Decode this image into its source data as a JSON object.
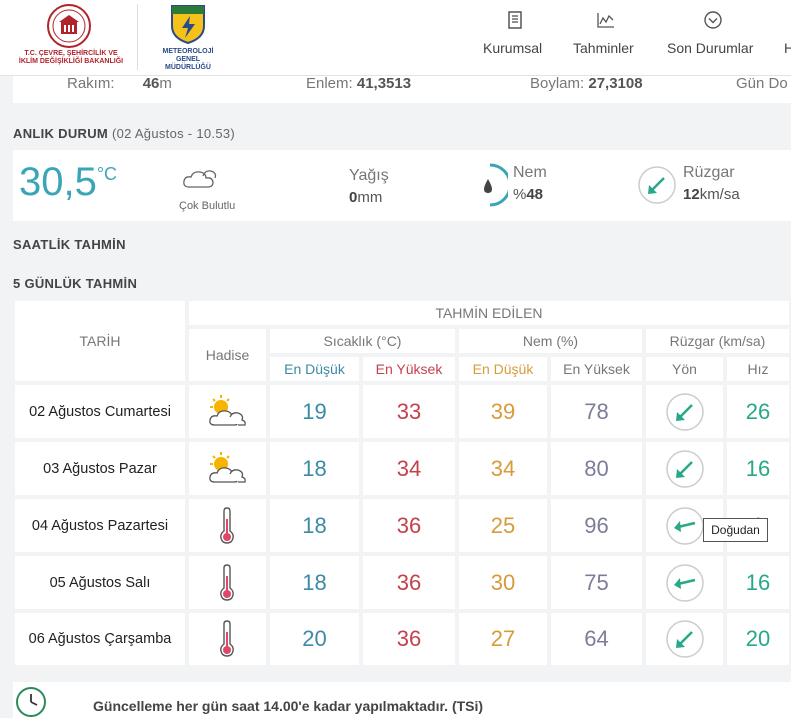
{
  "header": {
    "ministry_line1": "T.C. ÇEVRE, ŞEHİRCİLİK VE",
    "ministry_line2": "İKLİM DEĞİŞİKLİĞİ BAKANLIĞI",
    "mgm_line1": "METEOROLOJİ",
    "mgm_line2": "GENEL MÜDÜRLÜĞÜ",
    "mgm_badge_text": "METEOROLOJİ",
    "nav": [
      {
        "label": "Kurumsal",
        "icon": "document-icon"
      },
      {
        "label": "Tahminler",
        "icon": "chart-line-icon"
      },
      {
        "label": "Son Durumlar",
        "icon": "chevron-circle-icon"
      },
      {
        "label": "H",
        "icon": "cut-off-icon"
      }
    ]
  },
  "location": {
    "rakim_label": "Rakım:",
    "rakim_value": "46",
    "rakim_unit": "m",
    "enlem_label": "Enlem:",
    "enlem_value": "41,3513",
    "boylam_label": "Boylam:",
    "boylam_value": "27,3108",
    "gun_label": "Gün Do"
  },
  "current": {
    "section_title": "ANLIK DURUM",
    "section_time": "(02 Ağustos - 10.53)",
    "temperature": "30,5",
    "unit": "°C",
    "condition": "Çok Bulutlu",
    "yagis_label": "Yağış",
    "yagis_value": "0",
    "yagis_unit": "mm",
    "nem_label": "Nem",
    "nem_prefix": "%",
    "nem_value": "48",
    "nem_fraction": 0.48,
    "ruzgar_label": "Rüzgar",
    "ruzgar_value": "12",
    "ruzgar_unit": "km/sa"
  },
  "hourly": {
    "section_title": "SAATLİK TAHMİN"
  },
  "forecast": {
    "section_title": "5 GÜNLÜK TAHMİN",
    "headers": {
      "tarih": "TARİH",
      "tahmin": "TAHMİN EDİLEN",
      "hadise": "Hadise",
      "sicaklik": "Sıcaklık (°C)",
      "nem": "Nem (%)",
      "ruzgar": "Rüzgar (km/sa)",
      "en_dusuk": "En Düşük",
      "en_yuksek": "En Yüksek",
      "yon": "Yön",
      "hiz": "Hız"
    },
    "rows": [
      {
        "day": "02 Ağustos Cumartesi",
        "icon": "sun-cloud-icon",
        "t_low": "19",
        "t_high": "33",
        "h_low": "39",
        "h_high": "78",
        "speed": "26"
      },
      {
        "day": "03 Ağustos Pazar",
        "icon": "sun-cloud-icon",
        "t_low": "18",
        "t_high": "34",
        "h_low": "34",
        "h_high": "80",
        "speed": "16"
      },
      {
        "day": "04 Ağustos Pazartesi",
        "icon": "thermometer-icon",
        "t_low": "18",
        "t_high": "36",
        "h_low": "25",
        "h_high": "96",
        "speed": "1"
      },
      {
        "day": "05 Ağustos Salı",
        "icon": "thermometer-icon",
        "t_low": "18",
        "t_high": "36",
        "h_low": "30",
        "h_high": "75",
        "speed": "16"
      },
      {
        "day": "06 Ağustos Çarşamba",
        "icon": "thermometer-icon",
        "t_low": "20",
        "t_high": "36",
        "h_low": "27",
        "h_high": "64",
        "speed": "20"
      }
    ],
    "tooltip": "Doğudan"
  },
  "footer": {
    "text": "Güncelleme her gün saat 14.00'e kadar yapılmaktadır. (TSi)"
  },
  "colors": {
    "temp_big": "#3aa6b5",
    "low": "#3d8aa6",
    "high": "#c3424c",
    "hum_low": "#d79b3a",
    "hum_high": "#7d7d9a",
    "wind": "#27a888"
  }
}
